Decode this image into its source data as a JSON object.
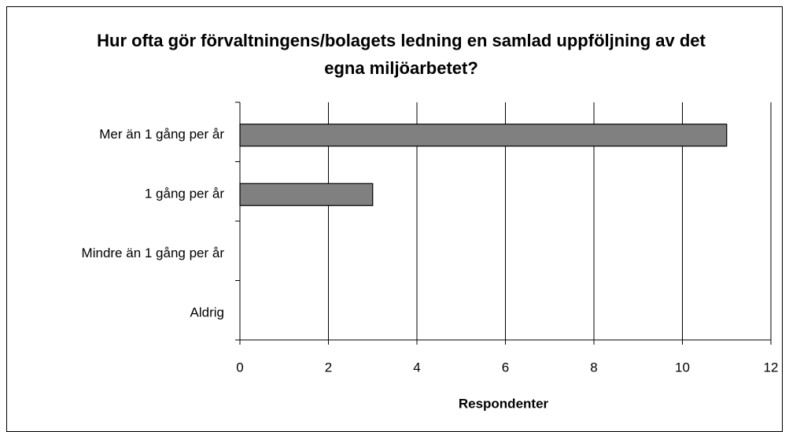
{
  "chart_data": {
    "type": "barh",
    "title": "Hur ofta gör förvaltningens/bolagets ledning en samlad uppföljning av det egna miljöarbetet?",
    "categories": [
      "Mer än 1 gång per år",
      "1 gång per år",
      "Mindre än 1 gång per år",
      "Aldrig"
    ],
    "values": [
      11,
      3,
      0,
      0
    ],
    "color": "#808080",
    "xlabel": "Respondenter",
    "xlim": [
      0,
      12
    ],
    "xticks": [
      0,
      2,
      4,
      6,
      8,
      10,
      12
    ],
    "grid": true
  }
}
